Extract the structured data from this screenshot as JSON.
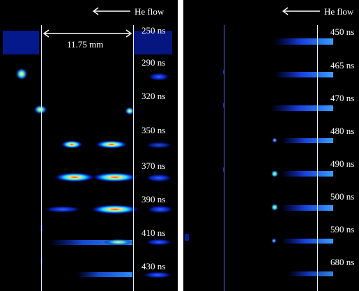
{
  "left_panel": {
    "flow_label": "He flow",
    "scale_label": "11.75 mm",
    "times": [
      "250 ns",
      "290 ns",
      "320 ns",
      "350 ns",
      "370 ns",
      "390 ns",
      "410 ns",
      "430 ns"
    ]
  },
  "right_panel": {
    "flow_label": "He flow",
    "times": [
      "450 ns",
      "465 ns",
      "470 ns",
      "480 ns",
      "490 ns",
      "500 ns",
      "590 ns",
      "680 ns"
    ]
  },
  "colors": {
    "background": "#000000",
    "plasma_low": "#0a2cff",
    "plasma_mid": "#17e0ff",
    "plasma_high": "#f2e870",
    "plasma_peak": "#ff3a2a"
  }
}
